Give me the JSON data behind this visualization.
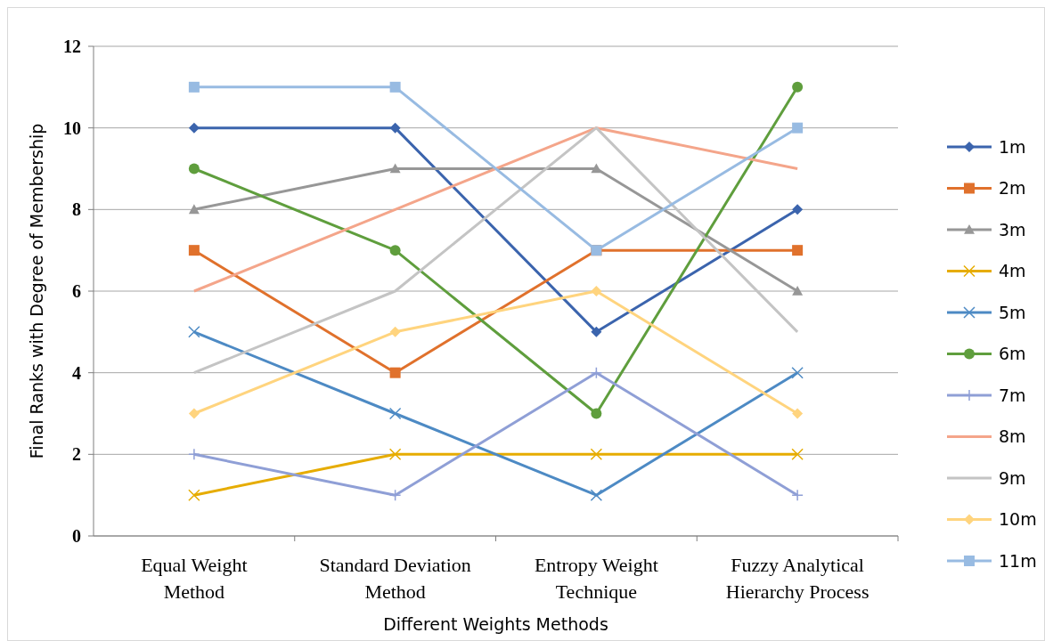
{
  "chart_data": {
    "type": "line",
    "xlabel": "Different Weights Methods",
    "ylabel": "Final Ranks with Degree of Membership",
    "categories": [
      "Equal Weight\nMethod",
      "Standard Deviation\nMethod",
      "Entropy Weight\nTechnique",
      "Fuzzy Analytical\nHierarchy Process"
    ],
    "ylim": [
      0,
      12
    ],
    "yticks": [
      0,
      2,
      4,
      6,
      8,
      10,
      12
    ],
    "grid": "y",
    "legend": "right",
    "line_style": "solid",
    "series": [
      {
        "name": "1m",
        "color": "#3b64ad",
        "marker": "diamond",
        "values": [
          10,
          10,
          5,
          8
        ]
      },
      {
        "name": "2m",
        "color": "#e0712c",
        "marker": "square",
        "values": [
          7,
          4,
          7,
          7
        ]
      },
      {
        "name": "3m",
        "color": "#979797",
        "marker": "triangle",
        "values": [
          8,
          9,
          9,
          6
        ]
      },
      {
        "name": "4m",
        "color": "#e6ac00",
        "marker": "cross",
        "values": [
          1,
          2,
          2,
          2
        ]
      },
      {
        "name": "5m",
        "color": "#4d8ac4",
        "marker": "cross",
        "values": [
          5,
          3,
          1,
          4
        ]
      },
      {
        "name": "6m",
        "color": "#5f9e3d",
        "marker": "circle",
        "values": [
          9,
          7,
          3,
          11
        ]
      },
      {
        "name": "7m",
        "color": "#8f9fd6",
        "marker": "plus",
        "values": [
          2,
          1,
          4,
          1
        ]
      },
      {
        "name": "8m",
        "color": "#f4a58a",
        "marker": "none",
        "values": [
          6,
          8,
          10,
          9
        ]
      },
      {
        "name": "9m",
        "color": "#c4c4c4",
        "marker": "none",
        "values": [
          4,
          6,
          10,
          5
        ]
      },
      {
        "name": "10m",
        "color": "#ffd47e",
        "marker": "diamond",
        "values": [
          3,
          5,
          6,
          3
        ]
      },
      {
        "name": "11m",
        "color": "#98bbe2",
        "marker": "square",
        "values": [
          11,
          11,
          7,
          10
        ]
      }
    ]
  }
}
